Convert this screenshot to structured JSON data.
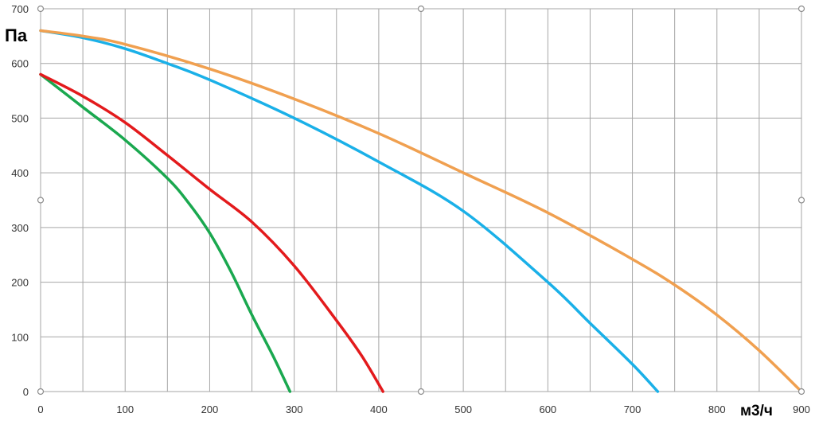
{
  "chart_data": {
    "type": "line",
    "title": "",
    "xlabel": "м3/ч",
    "ylabel": "Па",
    "xlim": [
      0,
      900
    ],
    "ylim": [
      0,
      700
    ],
    "x_ticks": [
      0,
      100,
      200,
      300,
      400,
      500,
      600,
      700,
      800,
      900
    ],
    "y_ticks": [
      0,
      100,
      200,
      300,
      400,
      500,
      600,
      700
    ],
    "grid": true,
    "legend": "none",
    "series": [
      {
        "color": "#1aa84f",
        "x": [
          0,
          50,
          100,
          150,
          175,
          200,
          225,
          250,
          275,
          295
        ],
        "y": [
          580,
          520,
          460,
          390,
          345,
          290,
          220,
          140,
          65,
          0
        ]
      },
      {
        "color": "#e31a1c",
        "x": [
          0,
          50,
          100,
          150,
          200,
          250,
          300,
          350,
          380,
          405
        ],
        "y": [
          580,
          540,
          492,
          432,
          370,
          310,
          230,
          130,
          65,
          0
        ]
      },
      {
        "color": "#1ab0e8",
        "x": [
          0,
          50,
          100,
          150,
          200,
          300,
          400,
          500,
          600,
          650,
          700,
          730
        ],
        "y": [
          660,
          647,
          627,
          600,
          570,
          500,
          420,
          330,
          200,
          125,
          50,
          0
        ]
      },
      {
        "color": "#f0a050",
        "x": [
          0,
          50,
          100,
          200,
          300,
          400,
          500,
          600,
          700,
          750,
          800,
          850,
          900
        ],
        "y": [
          660,
          650,
          635,
          590,
          535,
          472,
          400,
          327,
          242,
          195,
          140,
          75,
          0
        ]
      }
    ]
  }
}
